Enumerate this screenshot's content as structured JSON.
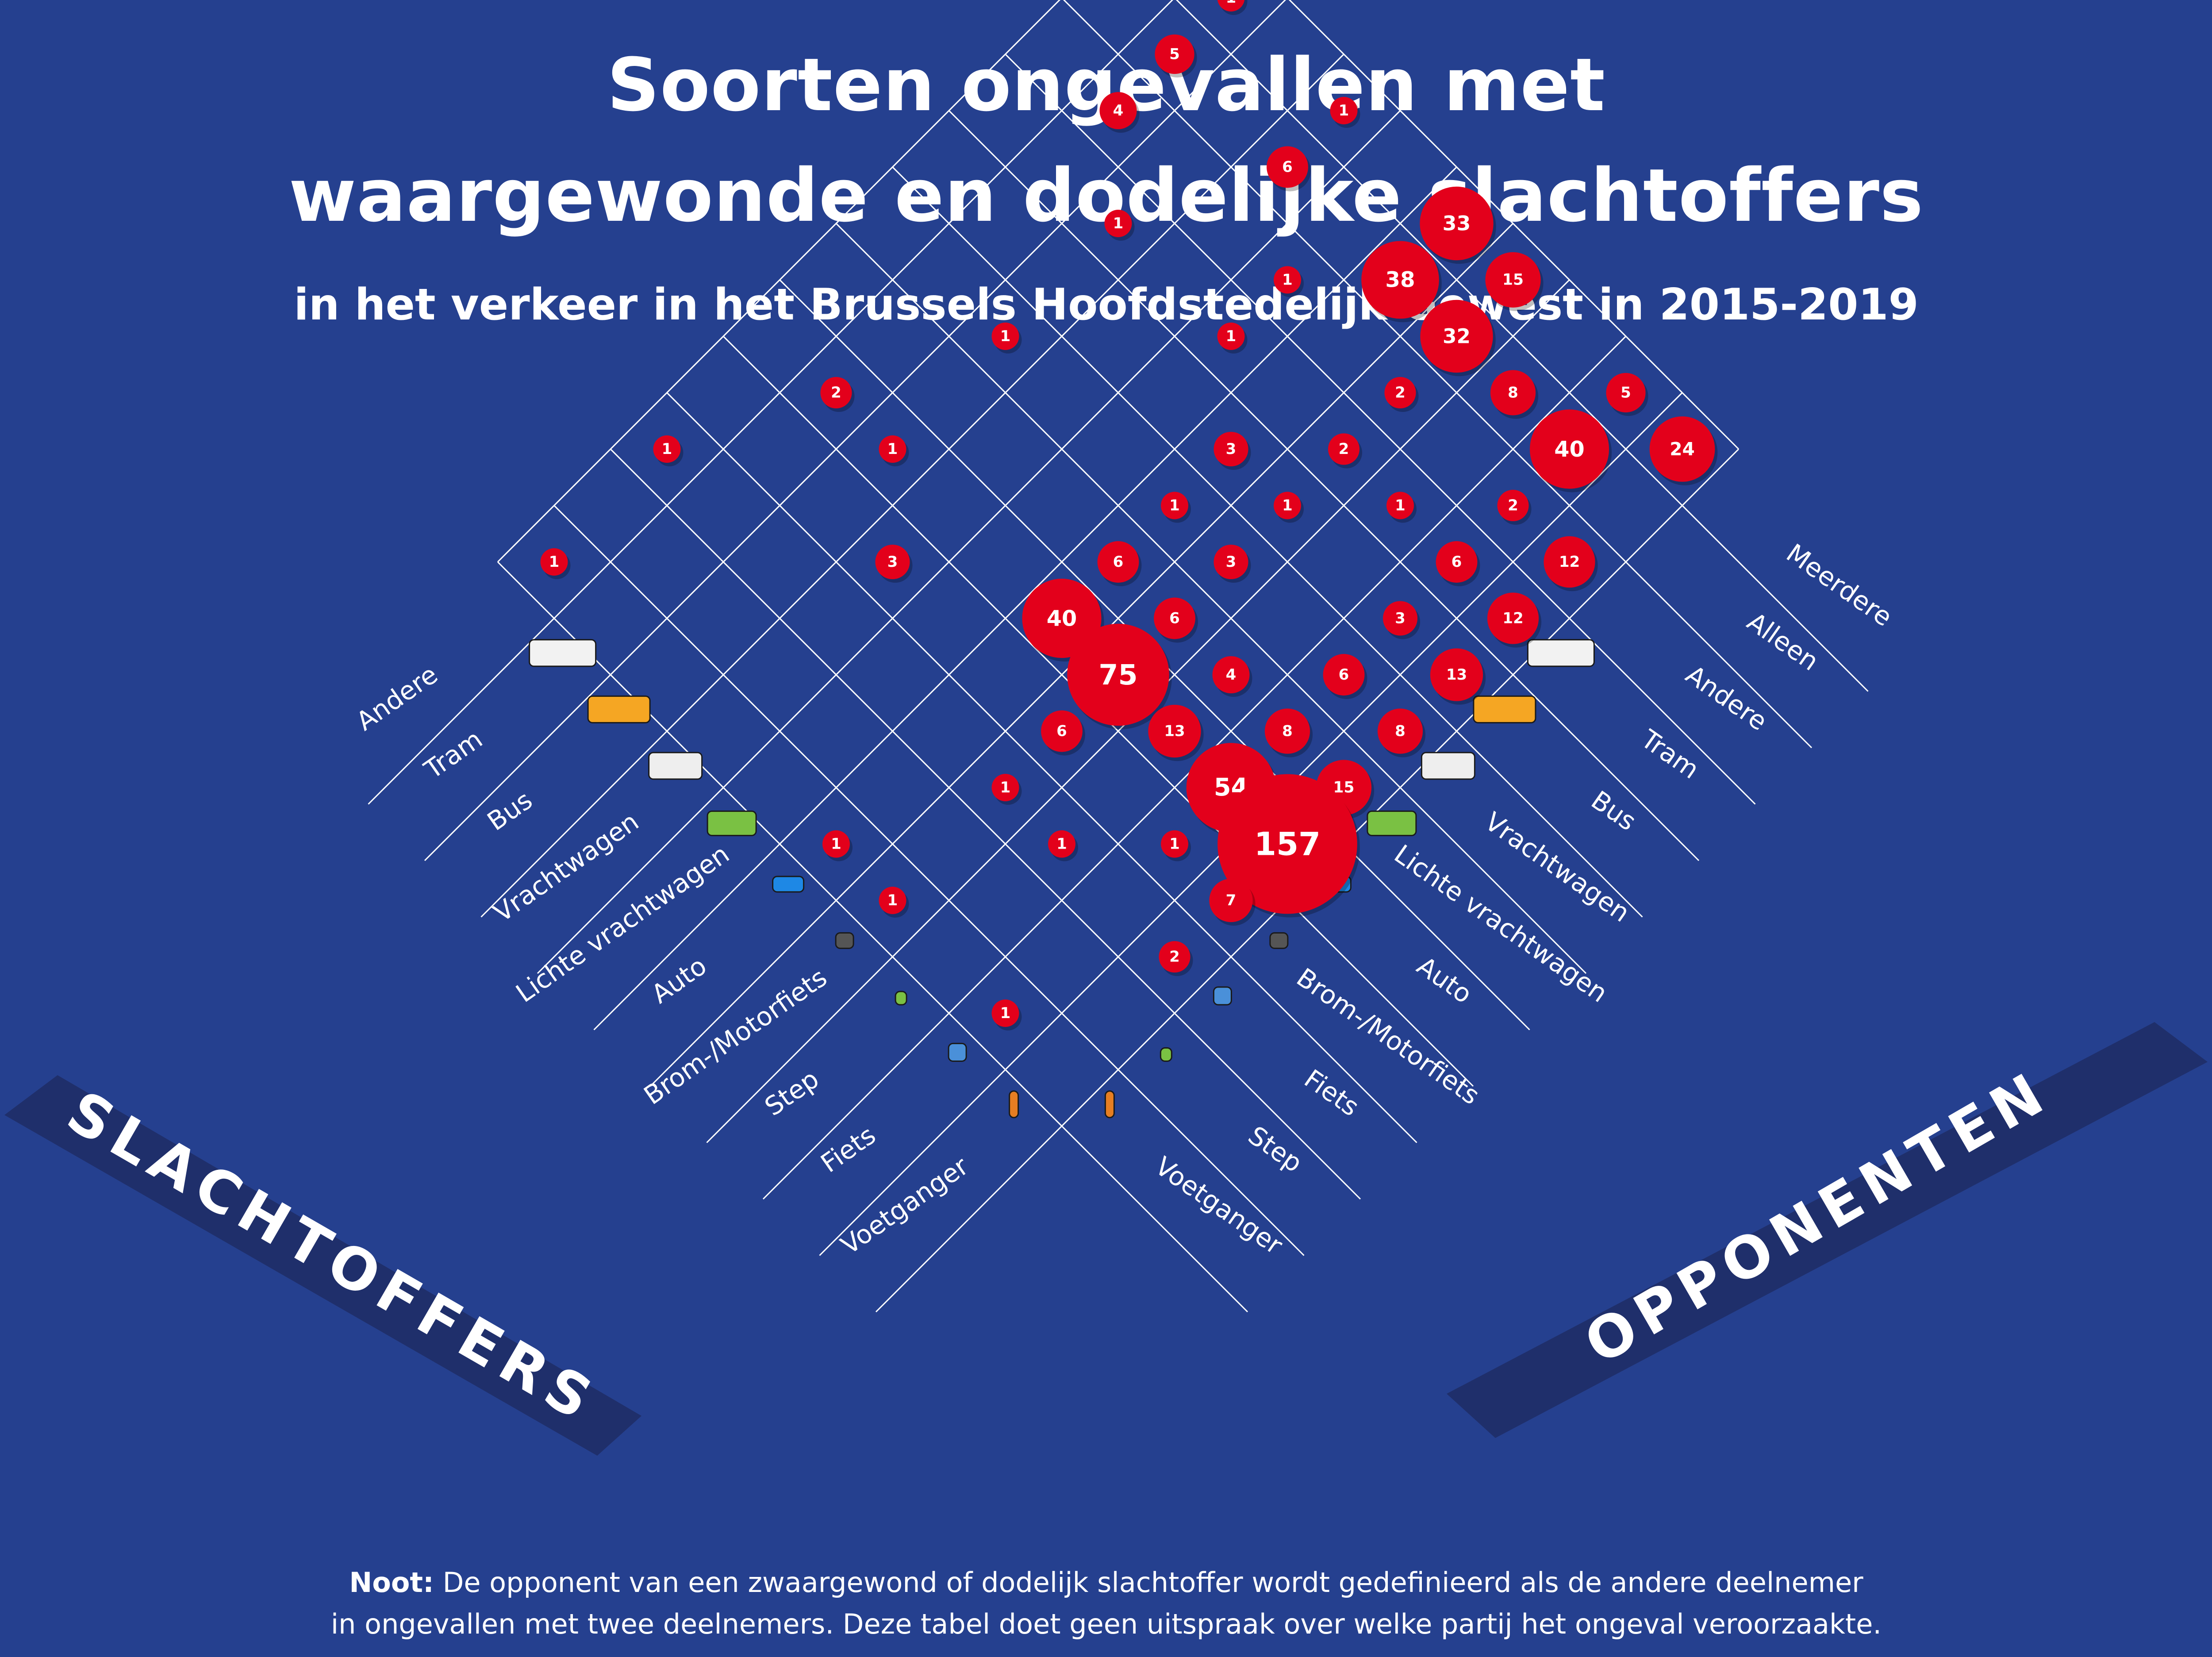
{
  "title_line1": "Soorten ongevallen met",
  "title_line2": "waargewonde en dodelijke slachtoffers",
  "subtitle": "in het verkeer in het Brussels Hoofdstedelijk Gewest in 2015-2019",
  "note_label": "Noot:",
  "note_line1": "De opponent van een zwaargewond of dodelijk slachtoffer wordt  gedefinieerd als de andere deelnemer",
  "note_line2": "in ongevallen met twee deelnemers. Deze tabel doet geen uitspraak over welke partij het ongeval veroorzaakte.",
  "colors": {
    "background": "#25408f",
    "banner": "#1f2f6b",
    "bubble": "#e3001b",
    "grid": "#ffffff"
  },
  "icons": [
    "tram-icon",
    "bus-icon",
    "truck-icon",
    "van-icon",
    "car-icon",
    "motorcycle-icon",
    "step-icon",
    "bicycle-icon",
    "pedestrian-icon"
  ],
  "chart_data": {
    "type": "heatmap",
    "encoding": "bubble-size",
    "victims_axis_title": "SLACHTOFFERS",
    "opponents_axis_title": "OPPONENTEN",
    "victims": [
      "Voetganger",
      "Fiets",
      "Step",
      "Brom-/Motorfiets",
      "Auto",
      "Lichte vrachtwagen",
      "Vrachtwagen",
      "Bus",
      "Tram",
      "Andere"
    ],
    "opponents": [
      "Voetganger",
      "Step",
      "Fiets",
      "Brom-/Motorfiets",
      "Auto",
      "Lichte vrachtwagen",
      "Vrachtwagen",
      "Bus",
      "Tram",
      "Andere",
      "Alleen",
      "Meerdere"
    ],
    "cells": [
      {
        "victim": "Voetganger",
        "opponent": "Fiets",
        "value": 2
      },
      {
        "victim": "Voetganger",
        "opponent": "Brom-/Motorfiets",
        "value": 7
      },
      {
        "victim": "Voetganger",
        "opponent": "Auto",
        "value": 157
      },
      {
        "victim": "Voetganger",
        "opponent": "Lichte vrachtwagen",
        "value": 15
      },
      {
        "victim": "Voetganger",
        "opponent": "Vrachtwagen",
        "value": 8
      },
      {
        "victim": "Voetganger",
        "opponent": "Bus",
        "value": 13
      },
      {
        "victim": "Voetganger",
        "opponent": "Tram",
        "value": 12
      },
      {
        "victim": "Voetganger",
        "opponent": "Andere",
        "value": 12
      },
      {
        "victim": "Voetganger",
        "opponent": "Meerdere",
        "value": 24
      },
      {
        "victim": "Fiets",
        "opponent": "Voetganger",
        "value": 1
      },
      {
        "victim": "Fiets",
        "opponent": "Brom-/Motorfiets",
        "value": 1
      },
      {
        "victim": "Fiets",
        "opponent": "Auto",
        "value": 54
      },
      {
        "victim": "Fiets",
        "opponent": "Lichte vrachtwagen",
        "value": 8
      },
      {
        "victim": "Fiets",
        "opponent": "Vrachtwagen",
        "value": 6
      },
      {
        "victim": "Fiets",
        "opponent": "Bus",
        "value": 3
      },
      {
        "victim": "Fiets",
        "opponent": "Tram",
        "value": 6
      },
      {
        "victim": "Fiets",
        "opponent": "Andere",
        "value": 2
      },
      {
        "victim": "Fiets",
        "opponent": "Alleen",
        "value": 40
      },
      {
        "victim": "Fiets",
        "opponent": "Meerdere",
        "value": 5
      },
      {
        "victim": "Step",
        "opponent": "Fiets",
        "value": 1
      },
      {
        "victim": "Step",
        "opponent": "Auto",
        "value": 13
      },
      {
        "victim": "Step",
        "opponent": "Lichte vrachtwagen",
        "value": 4
      },
      {
        "victim": "Step",
        "opponent": "Tram",
        "value": 1
      },
      {
        "victim": "Step",
        "opponent": "Alleen",
        "value": 8
      },
      {
        "victim": "Brom-/Motorfiets",
        "opponent": "Voetganger",
        "value": 1
      },
      {
        "victim": "Brom-/Motorfiets",
        "opponent": "Fiets",
        "value": 1
      },
      {
        "victim": "Brom-/Motorfiets",
        "opponent": "Brom-/Motorfiets",
        "value": 6
      },
      {
        "victim": "Brom-/Motorfiets",
        "opponent": "Auto",
        "value": 75
      },
      {
        "victim": "Brom-/Motorfiets",
        "opponent": "Lichte vrachtwagen",
        "value": 6
      },
      {
        "victim": "Brom-/Motorfiets",
        "opponent": "Vrachtwagen",
        "value": 3
      },
      {
        "victim": "Brom-/Motorfiets",
        "opponent": "Bus",
        "value": 1
      },
      {
        "victim": "Brom-/Motorfiets",
        "opponent": "Tram",
        "value": 2
      },
      {
        "victim": "Brom-/Motorfiets",
        "opponent": "Andere",
        "value": 2
      },
      {
        "victim": "Brom-/Motorfiets",
        "opponent": "Alleen",
        "value": 32
      },
      {
        "victim": "Brom-/Motorfiets",
        "opponent": "Meerdere",
        "value": 15
      },
      {
        "victim": "Auto",
        "opponent": "Voetganger",
        "value": 1
      },
      {
        "victim": "Auto",
        "opponent": "Auto",
        "value": 40
      },
      {
        "victim": "Auto",
        "opponent": "Lichte vrachtwagen",
        "value": 6
      },
      {
        "victim": "Auto",
        "opponent": "Vrachtwagen",
        "value": 1
      },
      {
        "victim": "Auto",
        "opponent": "Bus",
        "value": 3
      },
      {
        "victim": "Auto",
        "opponent": "Alleen",
        "value": 38
      },
      {
        "victim": "Auto",
        "opponent": "Meerdere",
        "value": 33
      },
      {
        "victim": "Lichte vrachtwagen",
        "opponent": "Tram",
        "value": 1
      },
      {
        "victim": "Lichte vrachtwagen",
        "opponent": "Andere",
        "value": 1
      },
      {
        "victim": "Vrachtwagen",
        "opponent": "Brom-/Motorfiets",
        "value": 3
      },
      {
        "victim": "Vrachtwagen",
        "opponent": "Alleen",
        "value": 6
      },
      {
        "victim": "Vrachtwagen",
        "opponent": "Meerdere",
        "value": 1
      },
      {
        "victim": "Bus",
        "opponent": "Auto",
        "value": 1
      },
      {
        "victim": "Bus",
        "opponent": "Vrachtwagen",
        "value": 1
      },
      {
        "victim": "Bus",
        "opponent": "Tram",
        "value": 1
      },
      {
        "victim": "Tram",
        "opponent": "Auto",
        "value": 2
      },
      {
        "victim": "Tram",
        "opponent": "Andere",
        "value": 4
      },
      {
        "victim": "Tram",
        "opponent": "Alleen",
        "value": 5
      },
      {
        "victim": "Tram",
        "opponent": "Meerdere",
        "value": 1
      },
      {
        "victim": "Andere",
        "opponent": "Voetganger",
        "value": 1
      },
      {
        "victim": "Andere",
        "opponent": "Fiets",
        "value": 1
      }
    ]
  }
}
